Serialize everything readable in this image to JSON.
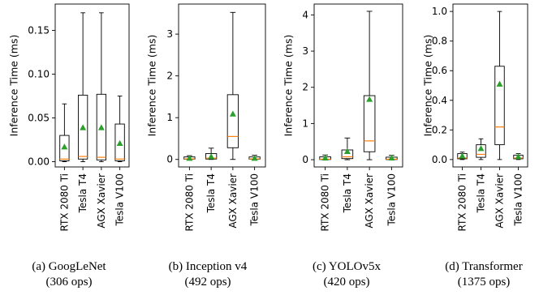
{
  "chart_data": [
    {
      "type": "box",
      "ylabel": "Inference Time (ms)",
      "categories": [
        "RTX 2080 Ti",
        "Tesla T4",
        "AGX Xavier",
        "Tesla V100"
      ],
      "ylim": [
        -0.006,
        0.18
      ],
      "yticks": [
        0.0,
        0.05,
        0.1,
        0.15
      ],
      "ytick_labels": [
        "0.00",
        "0.05",
        "0.10",
        "0.15"
      ],
      "boxes": [
        {
          "whislo": 0.0,
          "q1": 0.001,
          "med": 0.003,
          "q3": 0.03,
          "whishi": 0.066,
          "mean": 0.017
        },
        {
          "whislo": 0.0,
          "q1": 0.003,
          "med": 0.006,
          "q3": 0.076,
          "whishi": 0.17,
          "mean": 0.039
        },
        {
          "whislo": 0.0,
          "q1": 0.002,
          "med": 0.005,
          "q3": 0.077,
          "whishi": 0.17,
          "mean": 0.039
        },
        {
          "whislo": 0.0,
          "q1": 0.001,
          "med": 0.003,
          "q3": 0.043,
          "whishi": 0.075,
          "mean": 0.021
        }
      ],
      "caption_line1": "(a) GoogLeNet",
      "caption_line2": "(306 ops)"
    },
    {
      "type": "box",
      "ylabel": "Inference Time (ms)",
      "categories": [
        "RTX 2080 Ti",
        "Tesla T4",
        "AGX Xavier",
        "Tesla V100"
      ],
      "ylim": [
        -0.18,
        3.72
      ],
      "yticks": [
        0,
        1,
        2,
        3
      ],
      "ytick_labels": [
        "0",
        "1",
        "2",
        "3"
      ],
      "boxes": [
        {
          "whislo": 0.0,
          "q1": 0.005,
          "med": 0.012,
          "q3": 0.06,
          "whishi": 0.09,
          "mean": 0.03
        },
        {
          "whislo": 0.0,
          "q1": 0.01,
          "med": 0.03,
          "q3": 0.14,
          "whishi": 0.27,
          "mean": 0.07
        },
        {
          "whislo": 0.0,
          "q1": 0.28,
          "med": 0.55,
          "q3": 1.55,
          "whishi": 3.52,
          "mean": 1.09
        },
        {
          "whislo": 0.0,
          "q1": 0.005,
          "med": 0.012,
          "q3": 0.06,
          "whishi": 0.1,
          "mean": 0.03
        }
      ],
      "caption_line1": "(b) Inception v4",
      "caption_line2": "(492 ops)"
    },
    {
      "type": "box",
      "ylabel": "Inference Time (ms)",
      "categories": [
        "RTX 2080 Ti",
        "Tesla T4",
        "AGX Xavier",
        "Tesla V100"
      ],
      "ylim": [
        -0.2,
        4.3
      ],
      "yticks": [
        0,
        1,
        2,
        3,
        4
      ],
      "ytick_labels": [
        "0",
        "1",
        "2",
        "3",
        "4"
      ],
      "boxes": [
        {
          "whislo": 0.0,
          "q1": 0.005,
          "med": 0.015,
          "q3": 0.08,
          "whishi": 0.13,
          "mean": 0.05
        },
        {
          "whislo": 0.0,
          "q1": 0.03,
          "med": 0.08,
          "q3": 0.27,
          "whishi": 0.6,
          "mean": 0.23
        },
        {
          "whislo": 0.0,
          "q1": 0.22,
          "med": 0.52,
          "q3": 1.77,
          "whishi": 4.1,
          "mean": 1.67
        },
        {
          "whislo": 0.0,
          "q1": 0.005,
          "med": 0.015,
          "q3": 0.07,
          "whishi": 0.12,
          "mean": 0.05
        }
      ],
      "caption_line1": "(c) YOLOv5x",
      "caption_line2": "(420 ops)"
    },
    {
      "type": "box",
      "ylabel": "Inference Time (ms)",
      "categories": [
        "RTX 2080 Ti",
        "Tesla T4",
        "AGX Xavier",
        "Tesla V100"
      ],
      "ylim": [
        -0.05,
        1.05
      ],
      "yticks": [
        0.0,
        0.2,
        0.4,
        0.6,
        0.8,
        1.0
      ],
      "ytick_labels": [
        "0.0",
        "0.2",
        "0.4",
        "0.6",
        "0.8",
        "1.0"
      ],
      "boxes": [
        {
          "whislo": 0.0,
          "q1": 0.005,
          "med": 0.01,
          "q3": 0.04,
          "whishi": 0.05,
          "mean": 0.025
        },
        {
          "whislo": 0.0,
          "q1": 0.015,
          "med": 0.035,
          "q3": 0.1,
          "whishi": 0.14,
          "mean": 0.075
        },
        {
          "whislo": 0.0,
          "q1": 0.1,
          "med": 0.22,
          "q3": 0.63,
          "whishi": 1.0,
          "mean": 0.51
        },
        {
          "whislo": 0.0,
          "q1": 0.005,
          "med": 0.01,
          "q3": 0.03,
          "whishi": 0.04,
          "mean": 0.02
        }
      ],
      "caption_line1": "(d) Transformer",
      "caption_line2": "(1375 ops)"
    }
  ],
  "colors": {
    "box": "#000000",
    "median": "#ff7f0e",
    "mean_marker": "#2ca02c"
  }
}
